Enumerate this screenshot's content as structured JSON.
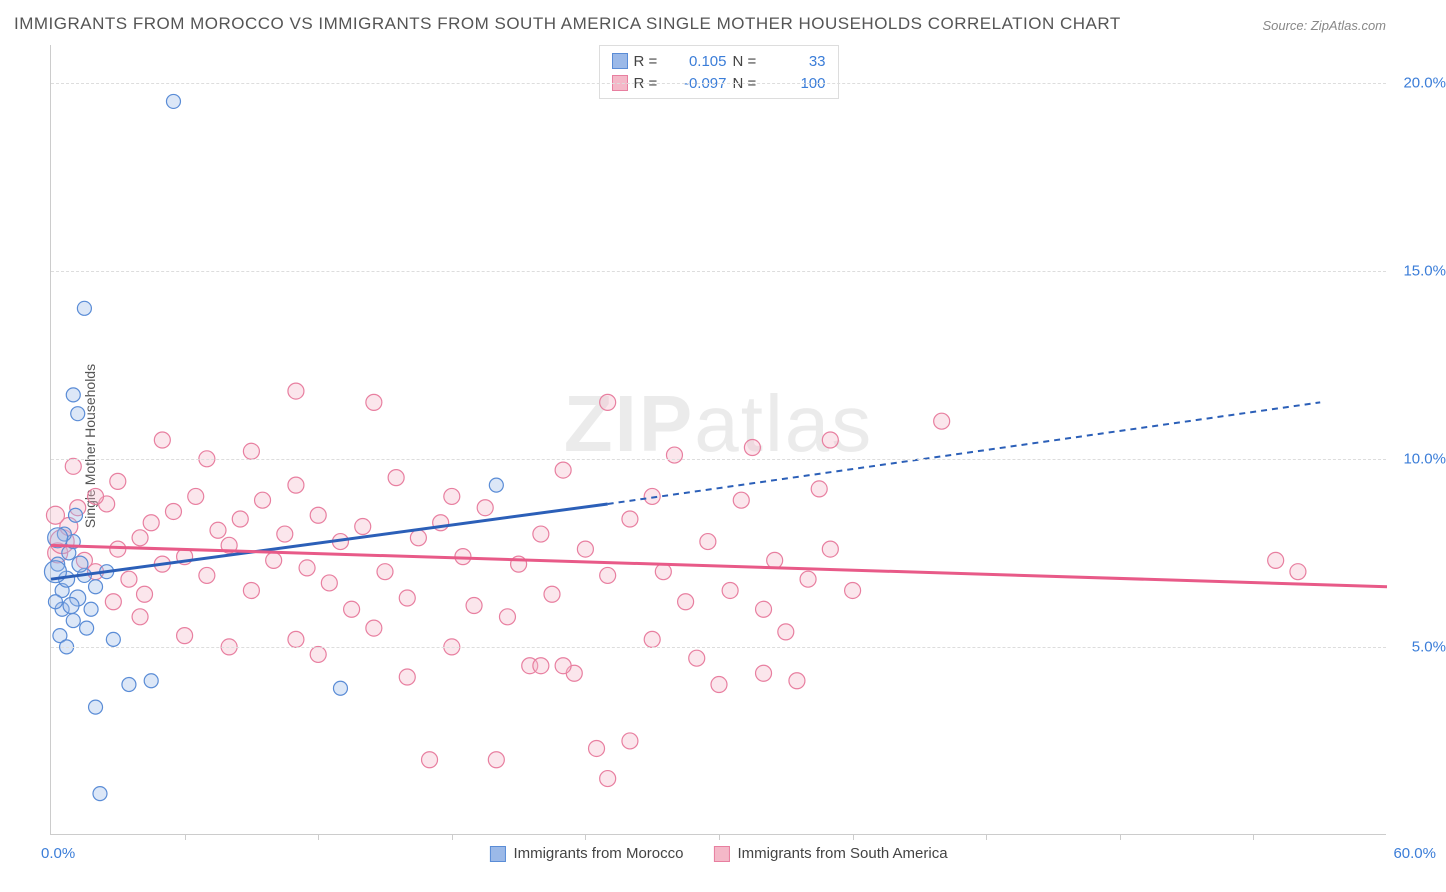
{
  "title": "IMMIGRANTS FROM MOROCCO VS IMMIGRANTS FROM SOUTH AMERICA SINGLE MOTHER HOUSEHOLDS CORRELATION CHART",
  "source": "Source: ZipAtlas.com",
  "y_axis_label": "Single Mother Households",
  "watermark_bold": "ZIP",
  "watermark_light": "atlas",
  "xlim": [
    0,
    60
  ],
  "ylim": [
    0,
    21
  ],
  "x_tick_start": "0.0%",
  "x_tick_end": "60.0%",
  "y_ticks": [
    {
      "v": 5,
      "label": "5.0%"
    },
    {
      "v": 10,
      "label": "10.0%"
    },
    {
      "v": 15,
      "label": "15.0%"
    },
    {
      "v": 20,
      "label": "20.0%"
    }
  ],
  "x_minor_ticks": [
    6,
    12,
    18,
    24,
    30,
    36,
    42,
    48,
    54
  ],
  "colors": {
    "blue_fill": "#9bb9e8",
    "blue_stroke": "#5a8cd6",
    "blue_line": "#2b5fb8",
    "pink_fill": "#f4b8c8",
    "pink_stroke": "#e87fa0",
    "pink_line": "#e85a88",
    "grid": "#dddddd",
    "axis": "#cccccc",
    "tick_text": "#3b7dd8",
    "title_text": "#555555"
  },
  "legend_top": {
    "rows": [
      {
        "swatch": "blue",
        "r_label": "R =",
        "r_val": "0.105",
        "n_label": "N =",
        "n_val": "33"
      },
      {
        "swatch": "pink",
        "r_label": "R =",
        "r_val": "-0.097",
        "n_label": "N =",
        "n_val": "100"
      }
    ]
  },
  "legend_bottom": {
    "items": [
      {
        "swatch": "blue",
        "label": "Immigrants from Morocco"
      },
      {
        "swatch": "pink",
        "label": "Immigrants from South America"
      }
    ]
  },
  "series": {
    "morocco": {
      "trend": {
        "x1": 0,
        "y1": 6.8,
        "x2_solid": 25,
        "y2_solid": 8.8,
        "x2_dash": 57,
        "y2_dash": 11.5
      },
      "points": [
        {
          "x": 0.3,
          "y": 7.2,
          "r": 7
        },
        {
          "x": 0.5,
          "y": 6.5,
          "r": 7
        },
        {
          "x": 0.7,
          "y": 6.8,
          "r": 8
        },
        {
          "x": 0.5,
          "y": 6.0,
          "r": 7
        },
        {
          "x": 1.0,
          "y": 5.7,
          "r": 7
        },
        {
          "x": 1.2,
          "y": 6.3,
          "r": 8
        },
        {
          "x": 0.8,
          "y": 7.5,
          "r": 7
        },
        {
          "x": 1.5,
          "y": 6.9,
          "r": 7
        },
        {
          "x": 1.0,
          "y": 7.8,
          "r": 7
        },
        {
          "x": 1.8,
          "y": 6.0,
          "r": 7
        },
        {
          "x": 0.4,
          "y": 5.3,
          "r": 7
        },
        {
          "x": 2.0,
          "y": 6.6,
          "r": 7
        },
        {
          "x": 1.3,
          "y": 7.2,
          "r": 8
        },
        {
          "x": 0.6,
          "y": 8.0,
          "r": 7
        },
        {
          "x": 2.5,
          "y": 7.0,
          "r": 7
        },
        {
          "x": 2.8,
          "y": 5.2,
          "r": 7
        },
        {
          "x": 3.5,
          "y": 4.0,
          "r": 7
        },
        {
          "x": 4.5,
          "y": 4.1,
          "r": 7
        },
        {
          "x": 2.0,
          "y": 3.4,
          "r": 7
        },
        {
          "x": 2.2,
          "y": 1.1,
          "r": 7
        },
        {
          "x": 1.5,
          "y": 14.0,
          "r": 7
        },
        {
          "x": 1.0,
          "y": 11.7,
          "r": 7
        },
        {
          "x": 1.2,
          "y": 11.2,
          "r": 7
        },
        {
          "x": 5.5,
          "y": 19.5,
          "r": 7
        },
        {
          "x": 13.0,
          "y": 3.9,
          "r": 7
        },
        {
          "x": 20.0,
          "y": 9.3,
          "r": 7
        },
        {
          "x": 0.3,
          "y": 7.9,
          "r": 10
        },
        {
          "x": 0.9,
          "y": 6.1,
          "r": 8
        },
        {
          "x": 0.2,
          "y": 6.2,
          "r": 7
        },
        {
          "x": 1.6,
          "y": 5.5,
          "r": 7
        },
        {
          "x": 0.7,
          "y": 5.0,
          "r": 7
        },
        {
          "x": 1.1,
          "y": 8.5,
          "r": 7
        },
        {
          "x": 0.2,
          "y": 7.0,
          "r": 11
        }
      ]
    },
    "south_america": {
      "trend": {
        "x1": 0,
        "y1": 7.7,
        "x2": 60,
        "y2": 6.6
      },
      "points": [
        {
          "x": 0.3,
          "y": 7.5,
          "r": 10
        },
        {
          "x": 0.5,
          "y": 7.8,
          "r": 12
        },
        {
          "x": 0.8,
          "y": 8.2,
          "r": 9
        },
        {
          "x": 1.5,
          "y": 7.3,
          "r": 8
        },
        {
          "x": 2.0,
          "y": 7.0,
          "r": 8
        },
        {
          "x": 2.5,
          "y": 8.8,
          "r": 8
        },
        {
          "x": 3.0,
          "y": 7.6,
          "r": 8
        },
        {
          "x": 3.5,
          "y": 6.8,
          "r": 8
        },
        {
          "x": 4.0,
          "y": 7.9,
          "r": 8
        },
        {
          "x": 4.5,
          "y": 8.3,
          "r": 8
        },
        {
          "x": 5.0,
          "y": 7.2,
          "r": 8
        },
        {
          "x": 5.5,
          "y": 8.6,
          "r": 8
        },
        {
          "x": 6.0,
          "y": 7.4,
          "r": 8
        },
        {
          "x": 6.5,
          "y": 9.0,
          "r": 8
        },
        {
          "x": 7.0,
          "y": 6.9,
          "r": 8
        },
        {
          "x": 7.5,
          "y": 8.1,
          "r": 8
        },
        {
          "x": 8.0,
          "y": 7.7,
          "r": 8
        },
        {
          "x": 8.5,
          "y": 8.4,
          "r": 8
        },
        {
          "x": 9.0,
          "y": 6.5,
          "r": 8
        },
        {
          "x": 9.5,
          "y": 8.9,
          "r": 8
        },
        {
          "x": 10.0,
          "y": 7.3,
          "r": 8
        },
        {
          "x": 10.5,
          "y": 8.0,
          "r": 8
        },
        {
          "x": 11.0,
          "y": 9.3,
          "r": 8
        },
        {
          "x": 11.5,
          "y": 7.1,
          "r": 8
        },
        {
          "x": 12.0,
          "y": 8.5,
          "r": 8
        },
        {
          "x": 12.5,
          "y": 6.7,
          "r": 8
        },
        {
          "x": 13.0,
          "y": 7.8,
          "r": 8
        },
        {
          "x": 11.0,
          "y": 11.8,
          "r": 8
        },
        {
          "x": 14.0,
          "y": 8.2,
          "r": 8
        },
        {
          "x": 14.5,
          "y": 5.5,
          "r": 8
        },
        {
          "x": 15.0,
          "y": 7.0,
          "r": 8
        },
        {
          "x": 15.5,
          "y": 9.5,
          "r": 8
        },
        {
          "x": 16.0,
          "y": 6.3,
          "r": 8
        },
        {
          "x": 16.5,
          "y": 7.9,
          "r": 8
        },
        {
          "x": 14.5,
          "y": 11.5,
          "r": 8
        },
        {
          "x": 17.5,
          "y": 8.3,
          "r": 8
        },
        {
          "x": 18.0,
          "y": 5.0,
          "r": 8
        },
        {
          "x": 18.5,
          "y": 7.4,
          "r": 8
        },
        {
          "x": 19.0,
          "y": 6.1,
          "r": 8
        },
        {
          "x": 19.5,
          "y": 8.7,
          "r": 8
        },
        {
          "x": 20.0,
          "y": 2.0,
          "r": 8
        },
        {
          "x": 17.0,
          "y": 2.0,
          "r": 8
        },
        {
          "x": 21.0,
          "y": 7.2,
          "r": 8
        },
        {
          "x": 21.5,
          "y": 4.5,
          "r": 8
        },
        {
          "x": 22.0,
          "y": 8.0,
          "r": 8
        },
        {
          "x": 22.5,
          "y": 6.4,
          "r": 8
        },
        {
          "x": 23.0,
          "y": 9.7,
          "r": 8
        },
        {
          "x": 23.5,
          "y": 4.3,
          "r": 8
        },
        {
          "x": 24.0,
          "y": 7.6,
          "r": 8
        },
        {
          "x": 24.5,
          "y": 2.3,
          "r": 8
        },
        {
          "x": 25.0,
          "y": 6.9,
          "r": 8
        },
        {
          "x": 25.0,
          "y": 11.5,
          "r": 8
        },
        {
          "x": 26.0,
          "y": 8.4,
          "r": 8
        },
        {
          "x": 23.0,
          "y": 4.5,
          "r": 8
        },
        {
          "x": 27.0,
          "y": 5.2,
          "r": 8
        },
        {
          "x": 27.5,
          "y": 7.0,
          "r": 8
        },
        {
          "x": 28.0,
          "y": 10.1,
          "r": 8
        },
        {
          "x": 28.5,
          "y": 6.2,
          "r": 8
        },
        {
          "x": 29.0,
          "y": 4.7,
          "r": 8
        },
        {
          "x": 29.5,
          "y": 7.8,
          "r": 8
        },
        {
          "x": 25.0,
          "y": 1.5,
          "r": 8
        },
        {
          "x": 30.5,
          "y": 6.5,
          "r": 8
        },
        {
          "x": 31.0,
          "y": 8.9,
          "r": 8
        },
        {
          "x": 31.5,
          "y": 10.3,
          "r": 8
        },
        {
          "x": 32.0,
          "y": 6.0,
          "r": 8
        },
        {
          "x": 32.5,
          "y": 7.3,
          "r": 8
        },
        {
          "x": 33.0,
          "y": 5.4,
          "r": 8
        },
        {
          "x": 33.5,
          "y": 4.1,
          "r": 8
        },
        {
          "x": 34.0,
          "y": 6.8,
          "r": 8
        },
        {
          "x": 34.5,
          "y": 9.2,
          "r": 8
        },
        {
          "x": 35.0,
          "y": 7.6,
          "r": 8
        },
        {
          "x": 40.0,
          "y": 11.0,
          "r": 8
        },
        {
          "x": 56.0,
          "y": 7.0,
          "r": 8
        },
        {
          "x": 55.0,
          "y": 7.3,
          "r": 8
        },
        {
          "x": 22.0,
          "y": 4.5,
          "r": 8
        },
        {
          "x": 26.0,
          "y": 2.5,
          "r": 8
        },
        {
          "x": 4.0,
          "y": 5.8,
          "r": 8
        },
        {
          "x": 6.0,
          "y": 5.3,
          "r": 8
        },
        {
          "x": 8.0,
          "y": 5.0,
          "r": 8
        },
        {
          "x": 3.0,
          "y": 9.4,
          "r": 8
        },
        {
          "x": 2.0,
          "y": 9.0,
          "r": 8
        },
        {
          "x": 1.0,
          "y": 9.8,
          "r": 8
        },
        {
          "x": 12.0,
          "y": 4.8,
          "r": 8
        },
        {
          "x": 13.5,
          "y": 6.0,
          "r": 8
        },
        {
          "x": 16.0,
          "y": 4.2,
          "r": 8
        },
        {
          "x": 18.0,
          "y": 9.0,
          "r": 8
        },
        {
          "x": 20.5,
          "y": 5.8,
          "r": 8
        },
        {
          "x": 27.0,
          "y": 9.0,
          "r": 8
        },
        {
          "x": 30.0,
          "y": 4.0,
          "r": 8
        },
        {
          "x": 32.0,
          "y": 4.3,
          "r": 8
        },
        {
          "x": 36.0,
          "y": 6.5,
          "r": 8
        },
        {
          "x": 5.0,
          "y": 10.5,
          "r": 8
        },
        {
          "x": 7.0,
          "y": 10.0,
          "r": 8
        },
        {
          "x": 9.0,
          "y": 10.2,
          "r": 8
        },
        {
          "x": 11.0,
          "y": 5.2,
          "r": 8
        },
        {
          "x": 0.2,
          "y": 8.5,
          "r": 9
        },
        {
          "x": 1.2,
          "y": 8.7,
          "r": 8
        },
        {
          "x": 2.8,
          "y": 6.2,
          "r": 8
        },
        {
          "x": 4.2,
          "y": 6.4,
          "r": 8
        },
        {
          "x": 35.0,
          "y": 10.5,
          "r": 8
        }
      ]
    }
  }
}
